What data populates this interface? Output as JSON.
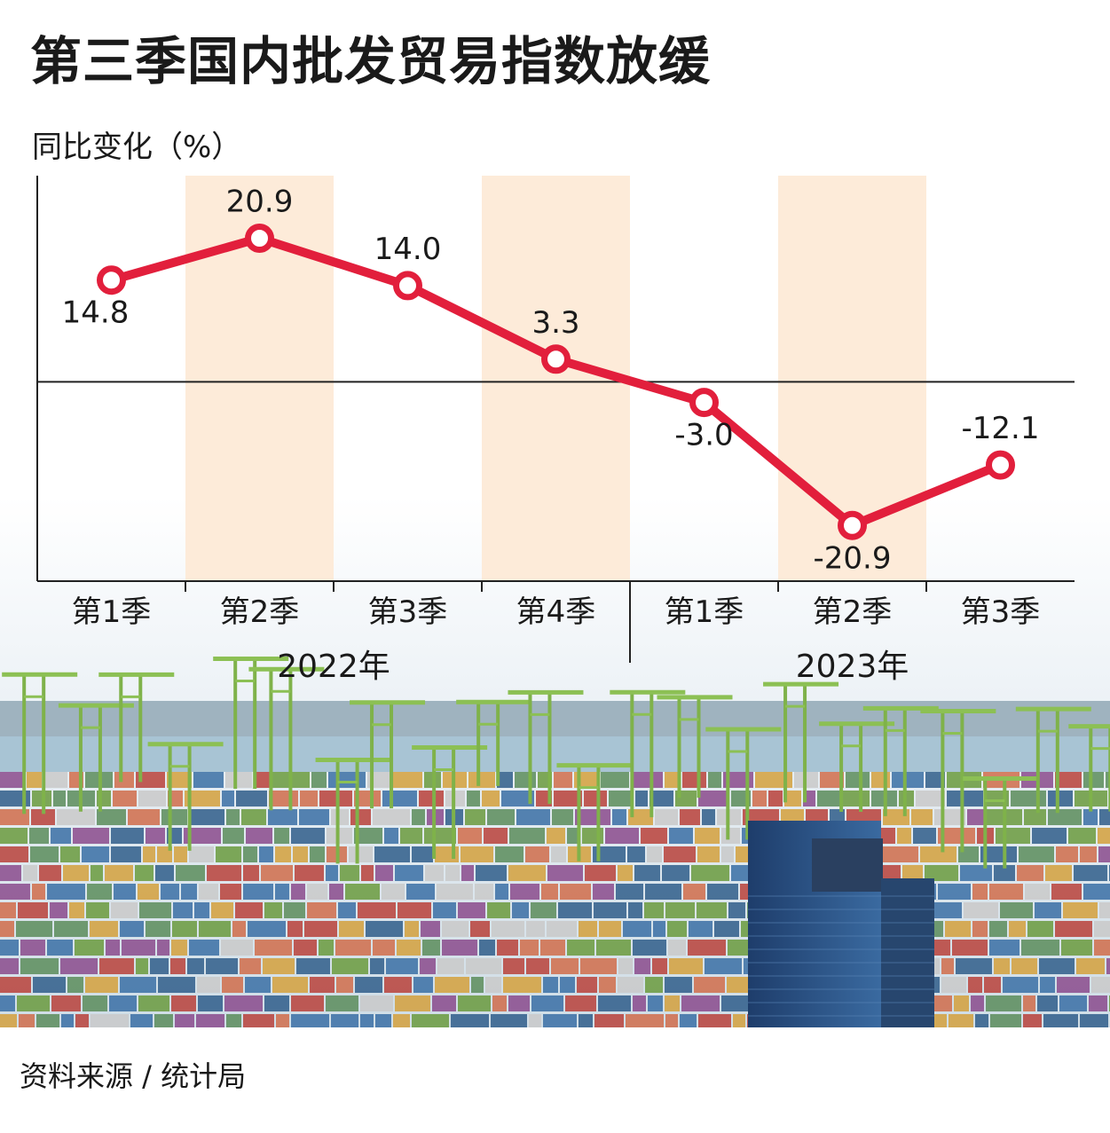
{
  "title": "第三季国内批发贸易指数放缓",
  "source": "资料来源 / 统计局",
  "colors": {
    "line": "#e21f3c",
    "shade": "#fde9d6",
    "axis": "#222222",
    "text": "#1a1a1a"
  },
  "chart_data": {
    "type": "line",
    "ylabel": "同比变化（%）",
    "categories": [
      "第1季",
      "第2季",
      "第3季",
      "第4季",
      "第1季",
      "第2季",
      "第3季"
    ],
    "years": [
      {
        "label": "2022年",
        "quarters": 4
      },
      {
        "label": "2023年",
        "quarters": 3
      }
    ],
    "series": [
      {
        "values": [
          14.8,
          20.9,
          14.0,
          3.3,
          -3.0,
          -20.9,
          -12.1
        ]
      }
    ],
    "data_labels": [
      "14.8",
      "20.9",
      "14.0",
      "3.3",
      "-3.0",
      "-20.9",
      "-12.1"
    ],
    "ylim": [
      -29,
      30
    ],
    "zero_line": true,
    "shaded_categories": [
      1,
      3,
      5
    ],
    "grid": false
  },
  "background": {
    "description_icon": "port-skyline-photo"
  }
}
